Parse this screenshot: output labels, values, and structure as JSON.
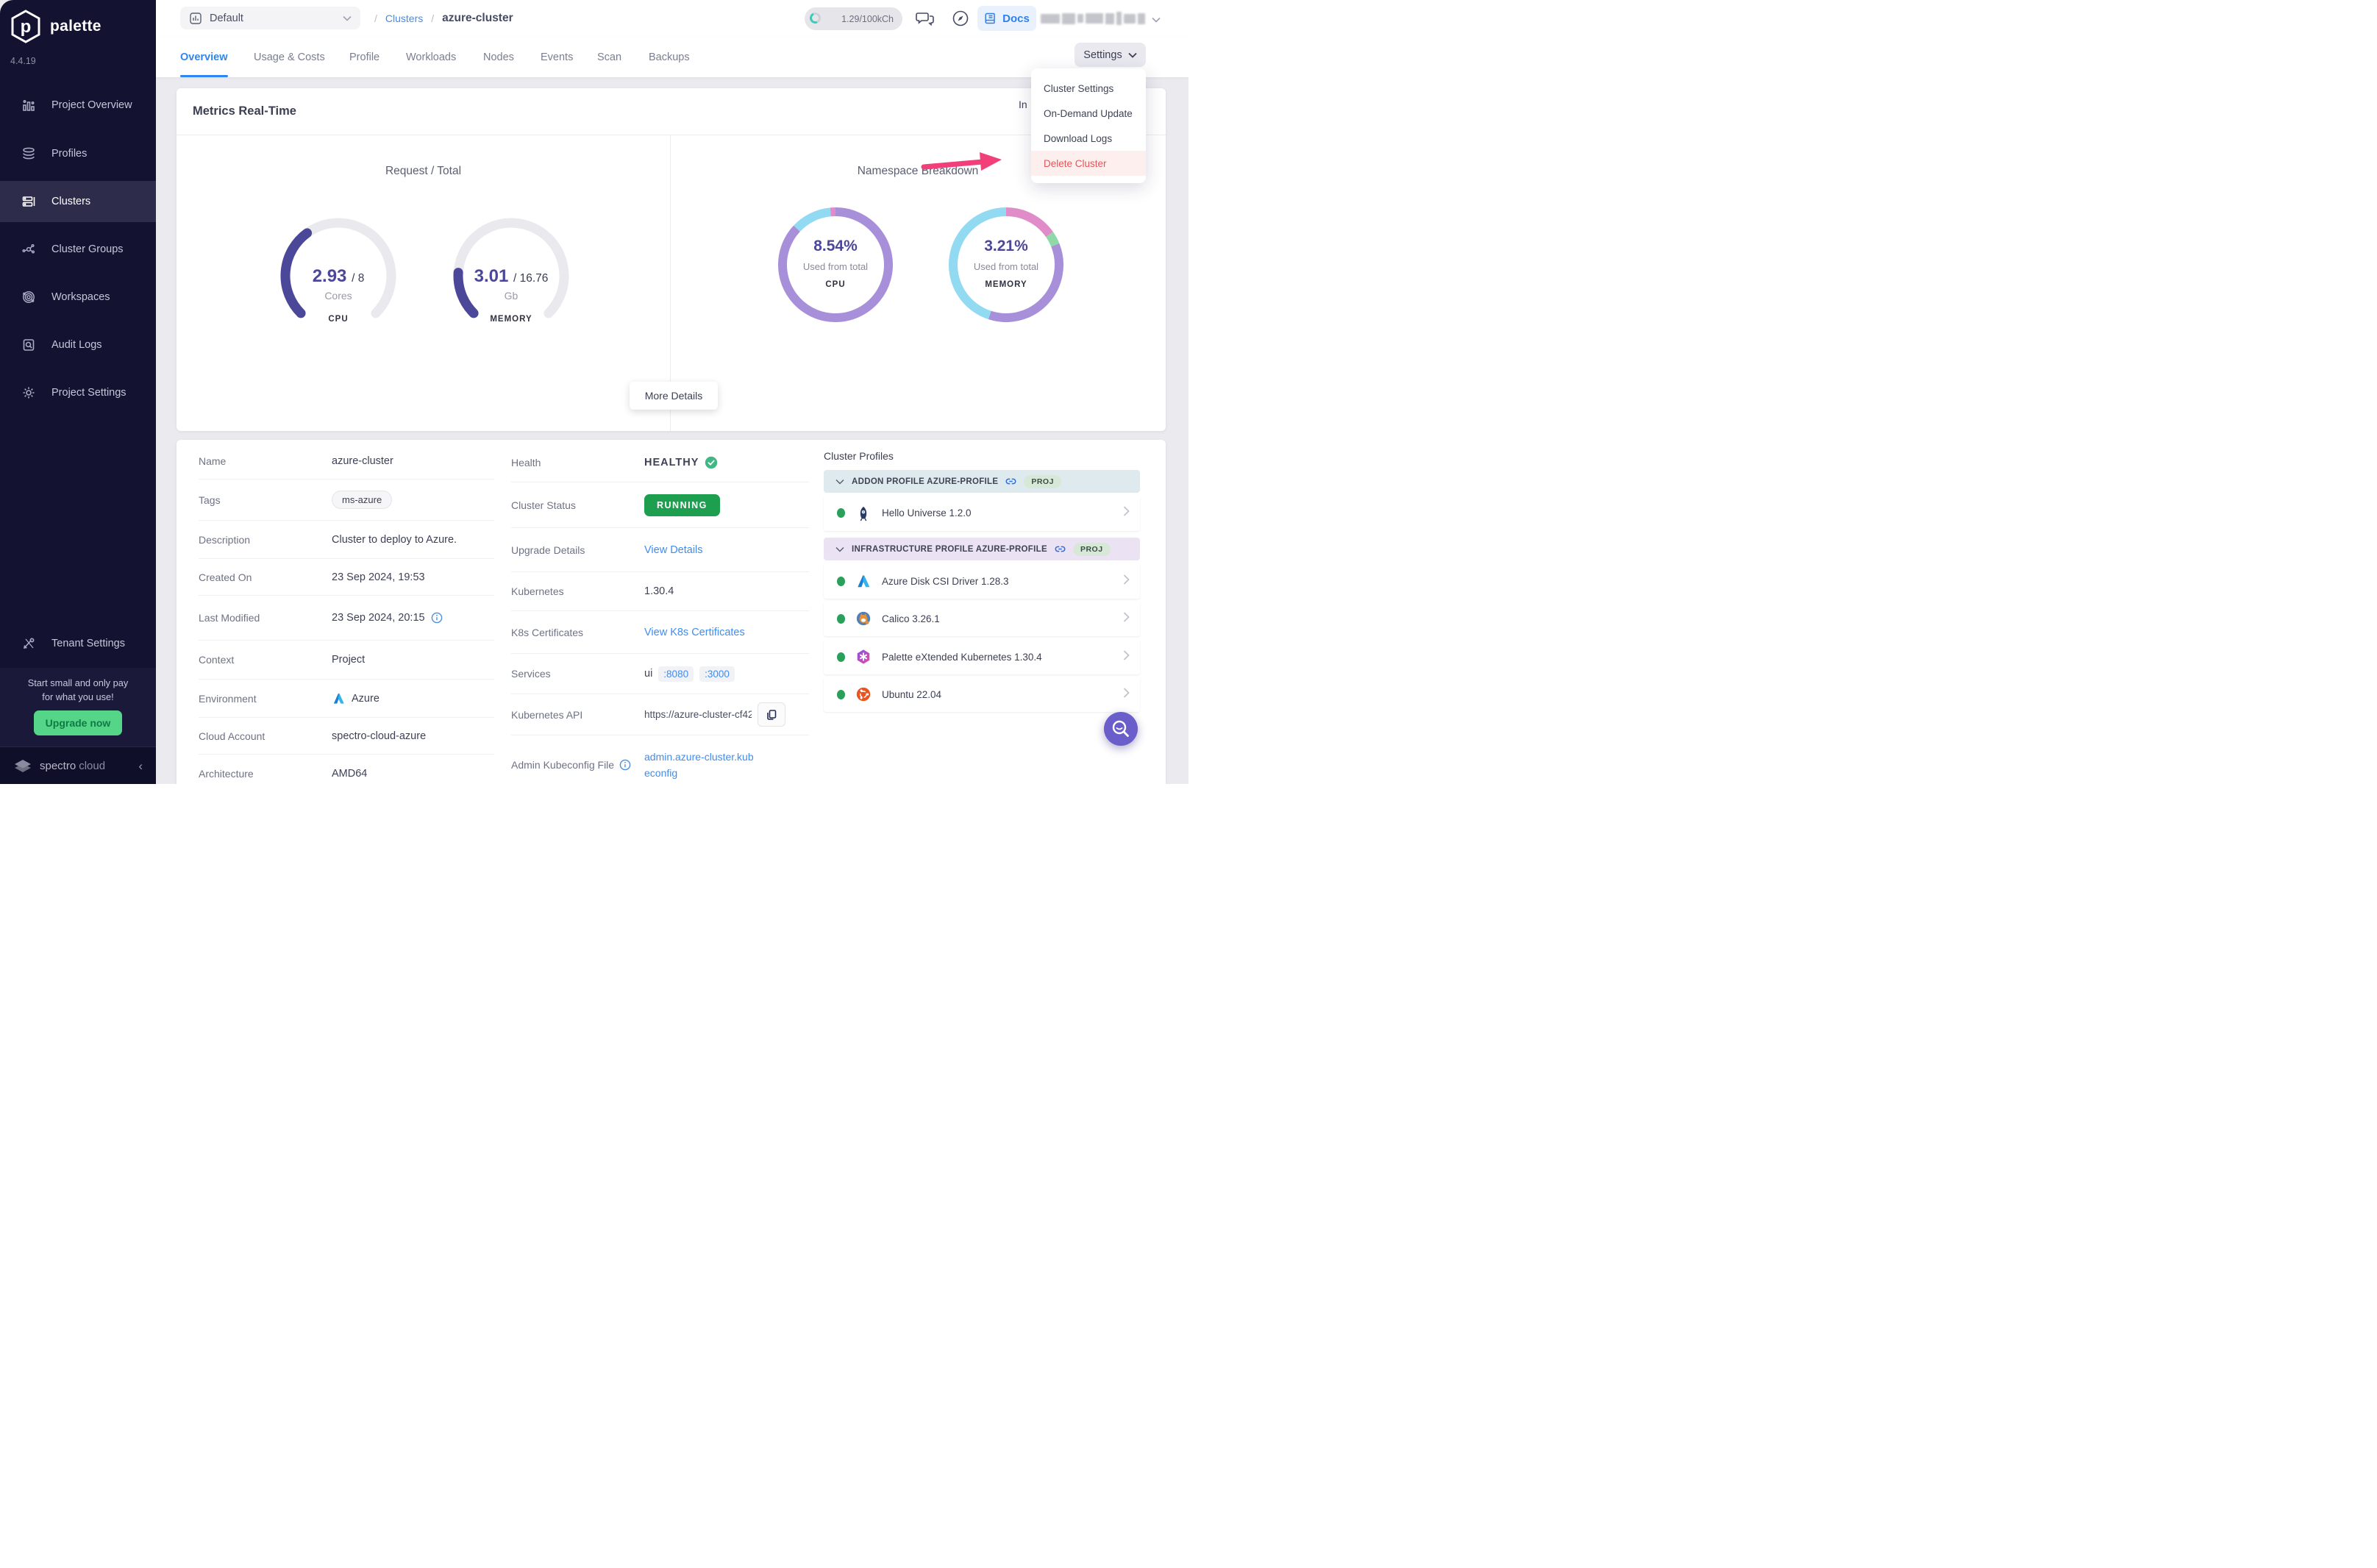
{
  "app": {
    "name": "palette",
    "version": "4.4.19"
  },
  "sidebar": {
    "items": [
      {
        "label": "Project Overview"
      },
      {
        "label": "Profiles"
      },
      {
        "label": "Clusters"
      },
      {
        "label": "Cluster Groups"
      },
      {
        "label": "Workspaces"
      },
      {
        "label": "Audit Logs"
      },
      {
        "label": "Project Settings"
      }
    ],
    "tenant_settings_label": "Tenant Settings",
    "promo_line1": "Start small and only pay",
    "promo_line2": "for what you use!",
    "upgrade_label": "Upgrade now",
    "brand_primary": "spectro",
    "brand_secondary": "cloud"
  },
  "topbar": {
    "project_selector": "Default",
    "breadcrumb_separator": "/",
    "breadcrumb_parent": "Clusters",
    "breadcrumb_current": "azure-cluster",
    "usage_badge": "1.29/100kCh",
    "docs_label": "Docs"
  },
  "tabs": [
    {
      "label": "Overview"
    },
    {
      "label": "Usage & Costs"
    },
    {
      "label": "Profile"
    },
    {
      "label": "Workloads"
    },
    {
      "label": "Nodes"
    },
    {
      "label": "Events"
    },
    {
      "label": "Scan"
    },
    {
      "label": "Backups"
    }
  ],
  "settings": {
    "button_label": "Settings",
    "menu": [
      {
        "label": "Cluster Settings"
      },
      {
        "label": "On-Demand Update"
      },
      {
        "label": "Download Logs"
      },
      {
        "label": "Delete Cluster"
      }
    ]
  },
  "metrics": {
    "title": "Metrics Real-Time",
    "interval_fragment": "In",
    "left_title": "Request / Total",
    "right_title": "Namespace Breakdown",
    "more_details_label": "More Details"
  },
  "chart_data": [
    {
      "type": "gauge",
      "name": "cpu-gauge",
      "value": 2.93,
      "total": 8,
      "value_display": "2.93",
      "total_display": "/ 8",
      "unit": "Cores",
      "label": "CPU",
      "color": "#4c4899",
      "track": "#e9e9ee",
      "sweep_deg": 270
    },
    {
      "type": "gauge",
      "name": "memory-gauge",
      "value": 3.01,
      "total": 16.76,
      "value_display": "3.01",
      "total_display": "/ 16.76",
      "unit": "Gb",
      "label": "MEMORY",
      "color": "#4c4899",
      "track": "#e9e9ee",
      "sweep_deg": 270
    },
    {
      "type": "donut",
      "name": "namespace-cpu-donut",
      "center_value": "8.54%",
      "center_caption": "Used from total",
      "label": "CPU",
      "segments": [
        {
          "name": "used",
          "pct": 87.0,
          "color": "#a78fd9"
        },
        {
          "name": "other-1",
          "pct": 11.5,
          "color": "#92d9f2"
        },
        {
          "name": "other-2",
          "pct": 1.5,
          "color": "#e08cc9"
        }
      ]
    },
    {
      "type": "donut",
      "name": "namespace-memory-donut",
      "center_value": "3.21%",
      "center_caption": "Used from total",
      "label": "MEMORY",
      "segments": [
        {
          "name": "seg-1",
          "pct": 15.3,
          "color": "#e08cc9"
        },
        {
          "name": "seg-2",
          "pct": 3.6,
          "color": "#8fd8a8"
        },
        {
          "name": "seg-3",
          "pct": 36.1,
          "color": "#a78fd9"
        },
        {
          "name": "seg-4",
          "pct": 45.0,
          "color": "#92d9f2"
        }
      ]
    }
  ],
  "overview": {
    "name_label": "Name",
    "name": "azure-cluster",
    "tags_label": "Tags",
    "tag": "ms-azure",
    "desc_label": "Description",
    "desc": "Cluster to deploy to Azure.",
    "created_label": "Created On",
    "created": "23 Sep 2024, 19:53",
    "modified_label": "Last Modified",
    "modified": "23 Sep 2024, 20:15",
    "context_label": "Context",
    "context": "Project",
    "env_label": "Environment",
    "env": "Azure",
    "account_label": "Cloud Account",
    "account": "spectro-cloud-azure",
    "arch_label": "Architecture",
    "arch": "AMD64"
  },
  "status": {
    "health_label": "Health",
    "health": "HEALTHY",
    "status_label": "Cluster Status",
    "status": "RUNNING",
    "upgrade_label": "Upgrade Details",
    "upgrade_link": "View Details",
    "k8s_label": "Kubernetes",
    "k8s_version": "1.30.4",
    "certs_label": "K8s Certificates",
    "certs_link": "View K8s Certificates",
    "services_label": "Services",
    "service_name": "ui",
    "port1": ":8080",
    "port2": ":3000",
    "api_label": "Kubernetes API",
    "api": "https://azure-cluster-cf42...",
    "kubeconfig_label": "Admin Kubeconfig File",
    "kubeconfig": "admin.azure-cluster.kubeconfig"
  },
  "profiles": {
    "title": "Cluster Profiles",
    "addon_header": "ADDON PROFILE AZURE-PROFILE",
    "addon_badge": "PROJ",
    "infra_header": "INFRASTRUCTURE PROFILE AZURE-PROFILE",
    "infra_badge": "PROJ",
    "addon_items": [
      {
        "name": "Hello Universe 1.2.0"
      }
    ],
    "infra_items": [
      {
        "name": "Azure Disk CSI Driver 1.28.3"
      },
      {
        "name": "Calico 3.26.1"
      },
      {
        "name": "Palette eXtended Kubernetes 1.30.4"
      },
      {
        "name": "Ubuntu 22.04"
      }
    ]
  },
  "colors": {
    "accent_blue": "#2f86f0",
    "link_blue": "#3f8cf3",
    "healthy_green": "#3fbd72",
    "running_green": "#1e9e4f",
    "danger_red": "#e4555a",
    "gauge_indigo": "#4c4899",
    "sidebar_bg": "#131230",
    "upgrade_green": "#55d588",
    "fab_purple": "#6a5ecb",
    "arrow_pink": "#f23e79"
  }
}
